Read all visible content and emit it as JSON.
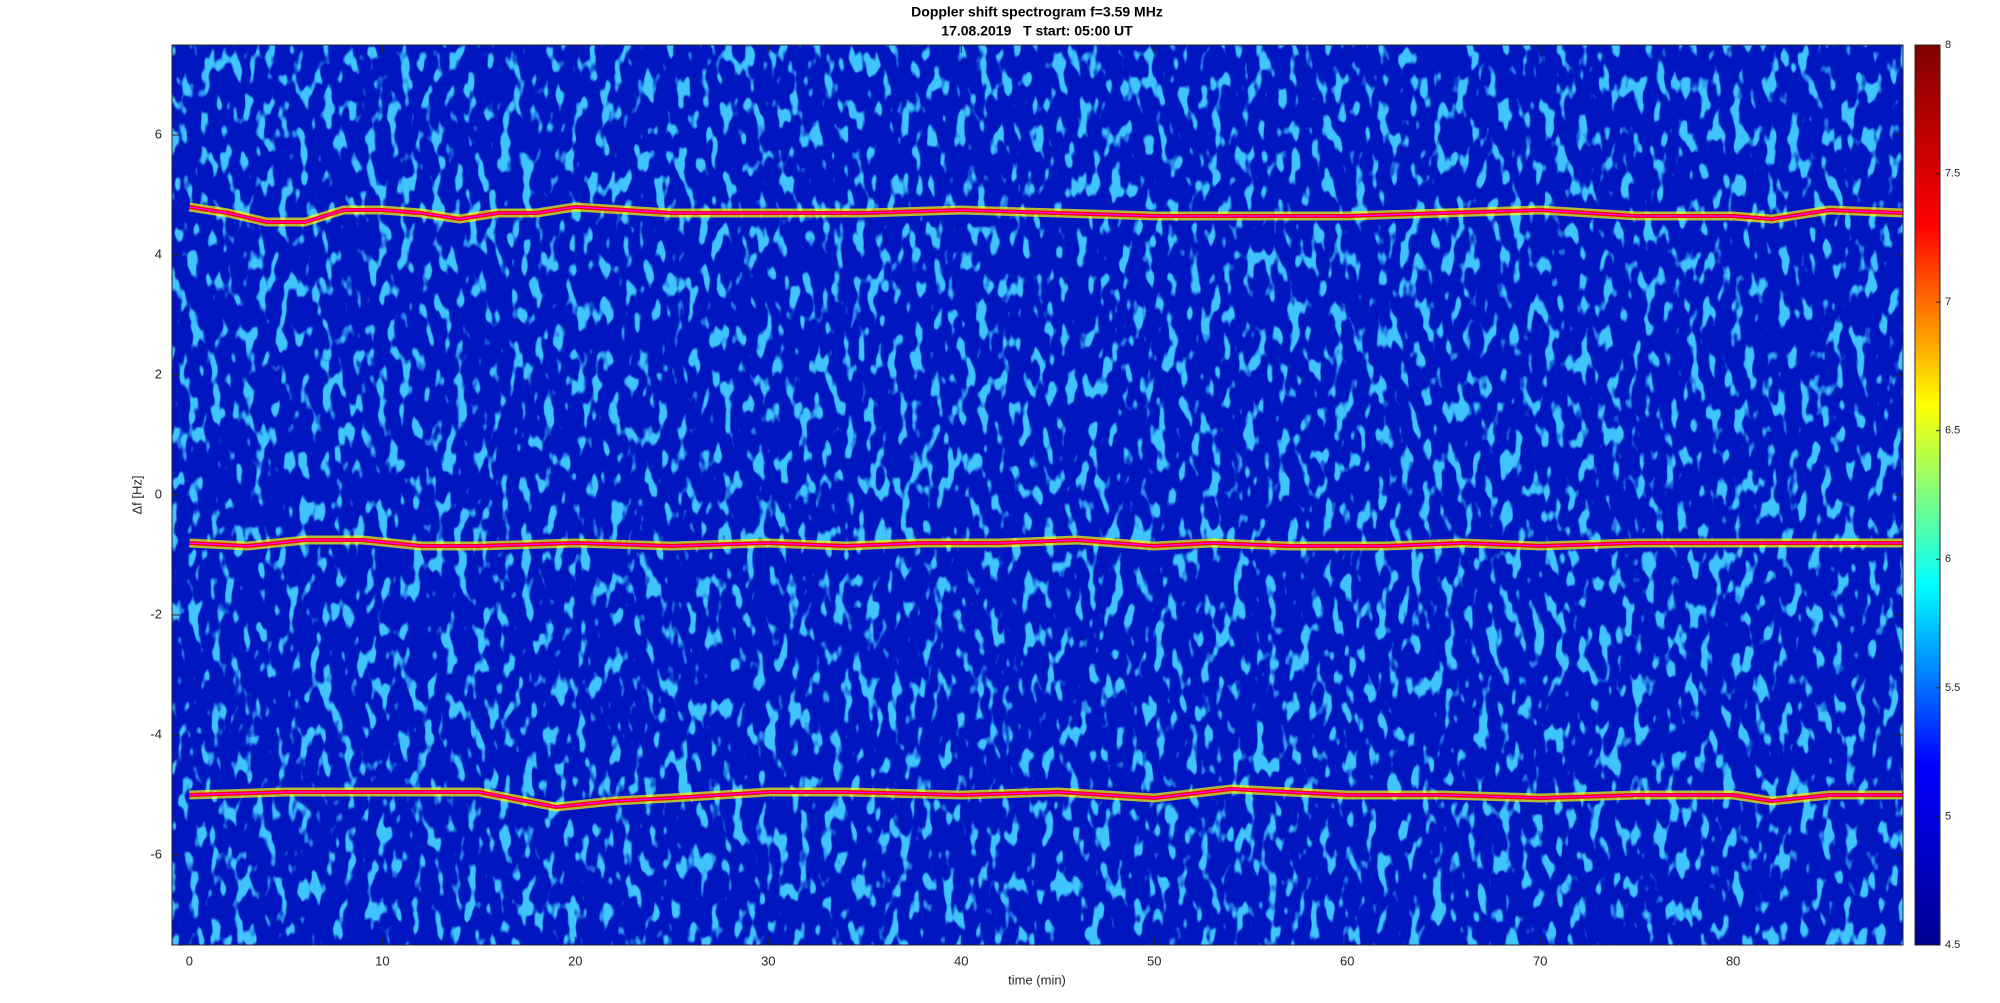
{
  "chart_data": {
    "type": "spectrogram",
    "title": "Doppler shift spectrogram f=3.59 MHz",
    "subtitle": "17.08.2019   T start: 05:00 UT",
    "xlabel": "time (min)",
    "ylabel": "Δf [Hz]",
    "xlim": [
      -0.9,
      88.8
    ],
    "ylim": [
      -7.5,
      7.5
    ],
    "xticks": [
      0,
      10,
      20,
      30,
      40,
      50,
      60,
      70,
      80
    ],
    "yticks": [
      -6,
      -4,
      -2,
      0,
      2,
      4,
      6
    ],
    "clim": [
      4.5,
      8
    ],
    "cticks": [
      4.5,
      5,
      5.5,
      6,
      6.5,
      7,
      7.5,
      8
    ],
    "colormap": [
      "#00008f",
      "#0000ff",
      "#00ffff",
      "#ffff00",
      "#ff0000",
      "#800000"
    ],
    "series": [
      {
        "color": "#ff00ff",
        "x": [
          0,
          2,
          4,
          6,
          8,
          10,
          12,
          14,
          16,
          18,
          20,
          25,
          30,
          35,
          40,
          45,
          50,
          55,
          60,
          65,
          70,
          75,
          80,
          82,
          85,
          88.8
        ],
        "values": [
          4.8,
          4.7,
          4.55,
          4.55,
          4.75,
          4.75,
          4.7,
          4.6,
          4.7,
          4.7,
          4.8,
          4.7,
          4.7,
          4.7,
          4.75,
          4.7,
          4.65,
          4.65,
          4.65,
          4.7,
          4.75,
          4.65,
          4.65,
          4.6,
          4.75,
          4.7
        ]
      },
      {
        "color": "#ff00ff",
        "x": [
          0,
          3,
          6,
          9,
          12,
          15,
          20,
          25,
          30,
          34,
          38,
          42,
          46,
          50,
          53,
          57,
          62,
          66,
          70,
          75,
          80,
          85,
          88.8
        ],
        "values": [
          -0.8,
          -0.85,
          -0.75,
          -0.75,
          -0.85,
          -0.85,
          -0.8,
          -0.85,
          -0.8,
          -0.85,
          -0.8,
          -0.8,
          -0.75,
          -0.85,
          -0.8,
          -0.85,
          -0.85,
          -0.8,
          -0.85,
          -0.8,
          -0.8,
          -0.8,
          -0.8
        ]
      },
      {
        "color": "#ff00ff",
        "x": [
          0,
          5,
          10,
          15,
          19,
          22,
          25,
          30,
          34,
          40,
          45,
          50,
          54,
          60,
          65,
          70,
          75,
          80,
          82,
          85,
          88.8
        ],
        "values": [
          -5.0,
          -4.95,
          -4.95,
          -4.95,
          -5.2,
          -5.1,
          -5.05,
          -4.95,
          -4.95,
          -5.0,
          -4.95,
          -5.05,
          -4.9,
          -5.0,
          -5.0,
          -5.05,
          -5.0,
          -5.0,
          -5.1,
          -5.0,
          -5.0
        ]
      }
    ]
  }
}
